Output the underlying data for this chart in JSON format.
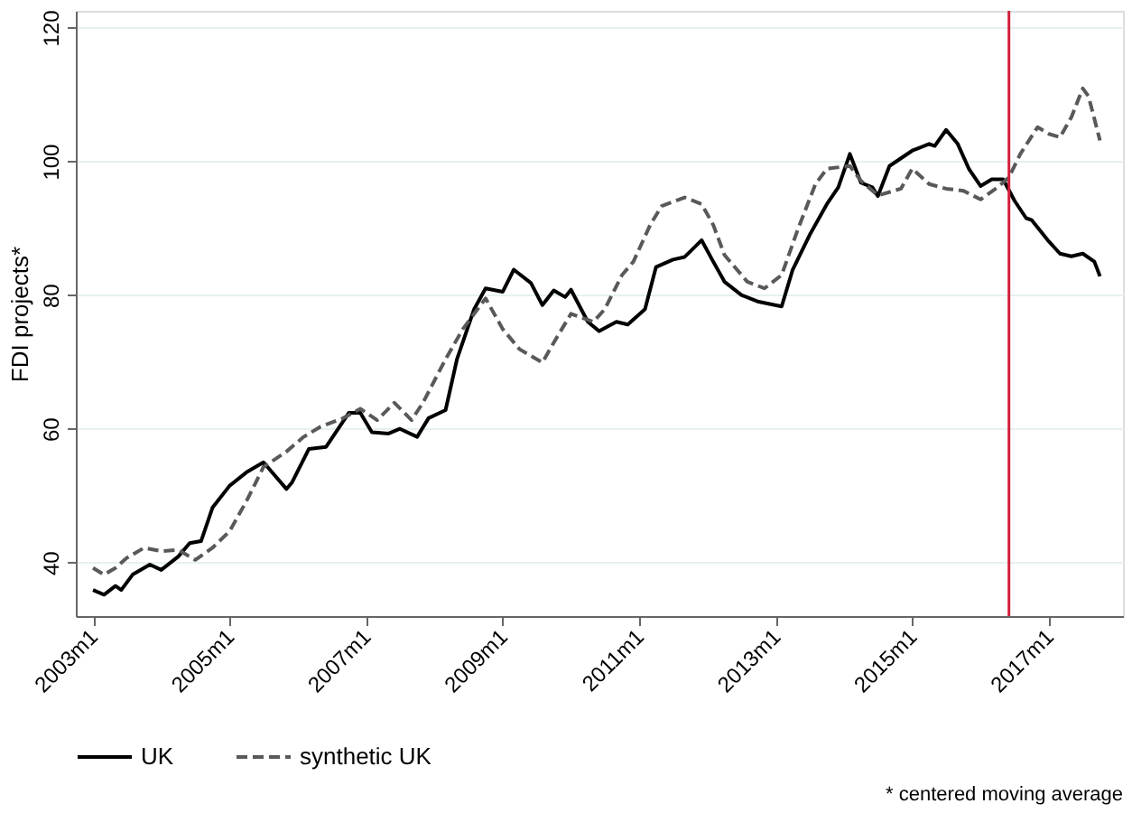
{
  "chart_data": {
    "type": "line",
    "ylabel": "FDI projects*",
    "annotations": [
      "* centered moving average"
    ],
    "xlim": [
      "2002-10",
      "2018-02"
    ],
    "ylim": [
      32,
      122.5
    ],
    "xticks": [
      {
        "value": "2003-01",
        "label": "2003m1"
      },
      {
        "value": "2005-01",
        "label": "2005m1"
      },
      {
        "value": "2007-01",
        "label": "2007m1"
      },
      {
        "value": "2009-01",
        "label": "2009m1"
      },
      {
        "value": "2011-01",
        "label": "2011m1"
      },
      {
        "value": "2013-01",
        "label": "2013m1"
      },
      {
        "value": "2015-01",
        "label": "2015m1"
      },
      {
        "value": "2017-01",
        "label": "2017m1"
      }
    ],
    "yticks": [
      40,
      60,
      80,
      100,
      120
    ],
    "grid": "y",
    "legend": "bottom",
    "marker": "none",
    "ref_lines": [
      {
        "axis": "x",
        "value": "2016-06",
        "color": "#d0203a",
        "line_style": "solid"
      }
    ],
    "series": [
      {
        "name": "UK",
        "color": "#000000",
        "line_style": "solid",
        "x": [
          "2003-01",
          "2003-03",
          "2003-05",
          "2003-06",
          "2003-08",
          "2003-11",
          "2004-01",
          "2004-04",
          "2004-06",
          "2004-08",
          "2004-10",
          "2005-01",
          "2005-04",
          "2005-07",
          "2005-11",
          "2005-12",
          "2006-03",
          "2006-06",
          "2006-10",
          "2006-12",
          "2007-02",
          "2007-05",
          "2007-07",
          "2007-10",
          "2007-12",
          "2008-03",
          "2008-05",
          "2008-08",
          "2008-10",
          "2009-01",
          "2009-03",
          "2009-06",
          "2009-08",
          "2009-10",
          "2009-12",
          "2010-01",
          "2010-04",
          "2010-06",
          "2010-09",
          "2010-11",
          "2011-02",
          "2011-04",
          "2011-07",
          "2011-09",
          "2011-12",
          "2012-02",
          "2012-04",
          "2012-07",
          "2012-10",
          "2013-02",
          "2013-04",
          "2013-07",
          "2013-10",
          "2013-12",
          "2014-02",
          "2014-04",
          "2014-06",
          "2014-07",
          "2014-09",
          "2015-01",
          "2015-04",
          "2015-05",
          "2015-07",
          "2015-09",
          "2015-11",
          "2016-01",
          "2016-03",
          "2016-05",
          "2016-07",
          "2016-09",
          "2016-10",
          "2017-01",
          "2017-03",
          "2017-05",
          "2017-07",
          "2017-09",
          "2017-10"
        ],
        "values": [
          35.9,
          35.2,
          36.5,
          35.9,
          38.2,
          39.7,
          38.9,
          40.9,
          42.9,
          43.2,
          48.2,
          51.5,
          53.5,
          55.0,
          51.0,
          52.0,
          57.0,
          57.3,
          62.4,
          62.4,
          59.5,
          59.3,
          60.0,
          58.8,
          61.6,
          62.8,
          70.4,
          77.9,
          81.0,
          80.5,
          83.8,
          81.8,
          78.5,
          80.7,
          79.7,
          80.8,
          76.0,
          74.6,
          76.0,
          75.6,
          77.9,
          84.2,
          85.3,
          85.7,
          88.2,
          85.0,
          82.0,
          80.0,
          79.0,
          78.3,
          83.8,
          89.0,
          93.6,
          96.1,
          101.1,
          96.8,
          96.1,
          94.8,
          99.3,
          101.6,
          102.6,
          102.3,
          104.7,
          102.6,
          98.8,
          96.3,
          97.3,
          97.3,
          94.1,
          91.5,
          91.2,
          88.0,
          86.2,
          85.8,
          86.2,
          85.0,
          82.8
        ]
      },
      {
        "name": "synthetic UK",
        "color": "#595959",
        "line_style": "dashed",
        "x": [
          "2003-01",
          "2003-03",
          "2003-05",
          "2003-07",
          "2003-10",
          "2004-01",
          "2004-04",
          "2004-07",
          "2004-10",
          "2005-01",
          "2005-04",
          "2005-07",
          "2005-11",
          "2006-02",
          "2006-05",
          "2006-09",
          "2006-12",
          "2007-03",
          "2007-06",
          "2007-09",
          "2007-11",
          "2008-03",
          "2008-06",
          "2008-10",
          "2009-01",
          "2009-04",
          "2009-08",
          "2009-10",
          "2010-01",
          "2010-05",
          "2010-07",
          "2010-10",
          "2010-12",
          "2011-03",
          "2011-05",
          "2011-09",
          "2011-12",
          "2012-02",
          "2012-04",
          "2012-08",
          "2012-11",
          "2013-02",
          "2013-05",
          "2013-08",
          "2013-10",
          "2014-02",
          "2014-04",
          "2014-07",
          "2014-11",
          "2015-01",
          "2015-04",
          "2015-07",
          "2015-10",
          "2016-01",
          "2016-04",
          "2016-06",
          "2016-08",
          "2016-11",
          "2017-01",
          "2017-03",
          "2017-05",
          "2017-07",
          "2017-08",
          "2017-10"
        ],
        "values": [
          39.2,
          38.2,
          39.2,
          40.7,
          42.2,
          41.7,
          41.9,
          40.4,
          42.2,
          44.7,
          49.2,
          54.3,
          56.6,
          58.8,
          60.3,
          61.6,
          63.0,
          61.3,
          63.9,
          61.3,
          63.9,
          70.4,
          74.9,
          79.5,
          74.9,
          71.9,
          69.9,
          72.9,
          77.2,
          76.0,
          77.9,
          83.0,
          85.0,
          90.5,
          93.3,
          94.6,
          93.6,
          90.5,
          86.0,
          82.0,
          81.0,
          83.0,
          90.0,
          96.6,
          98.9,
          99.3,
          97.1,
          94.9,
          95.9,
          98.9,
          96.6,
          95.9,
          95.6,
          94.3,
          96.1,
          97.6,
          101.1,
          105.1,
          104.1,
          103.6,
          106.6,
          110.9,
          109.7,
          103.1
        ]
      }
    ]
  }
}
